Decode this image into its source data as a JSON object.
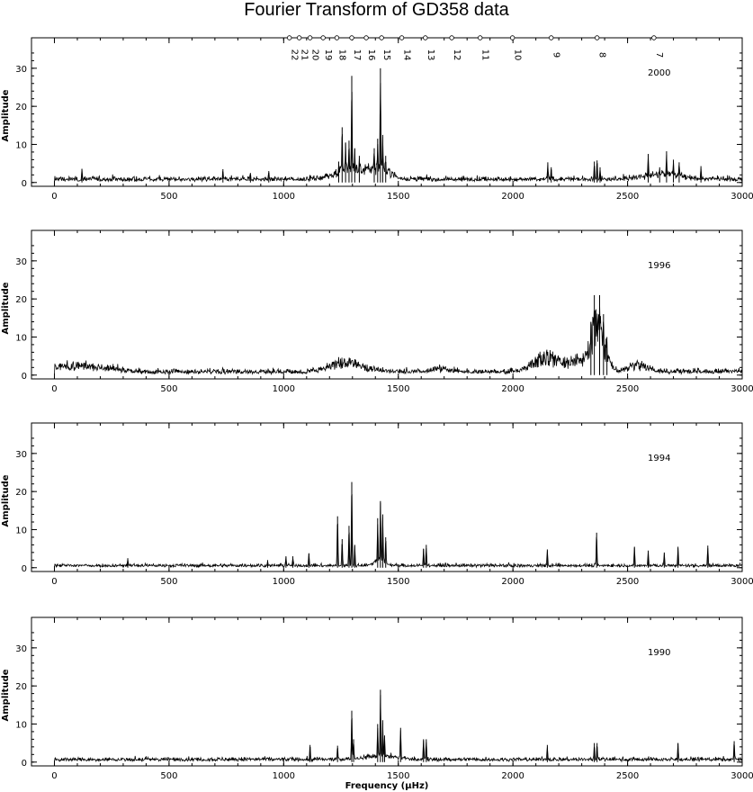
{
  "title": "Fourier Transform of GD358 data",
  "chart_data": {
    "type": "line",
    "xlabel": "Frequency (μHz)",
    "ylabel": "Amplitude",
    "xlim": [
      -100,
      3000
    ],
    "ylim": [
      -1,
      38
    ],
    "x_ticks": [
      0,
      500,
      1000,
      1500,
      2000,
      2500,
      3000
    ],
    "y_ticks": [
      0,
      10,
      20,
      30
    ],
    "mode_markers": [
      {
        "label": "22",
        "x": 1025
      },
      {
        "label": "21",
        "x": 1068
      },
      {
        "label": "20",
        "x": 1115
      },
      {
        "label": "19",
        "x": 1172
      },
      {
        "label": "18",
        "x": 1232
      },
      {
        "label": "17",
        "x": 1297
      },
      {
        "label": "16",
        "x": 1360
      },
      {
        "label": "15",
        "x": 1427
      },
      {
        "label": "14",
        "x": 1515
      },
      {
        "label": "13",
        "x": 1618
      },
      {
        "label": "12",
        "x": 1733
      },
      {
        "label": "11",
        "x": 1857
      },
      {
        "label": "10",
        "x": 1998
      },
      {
        "label": "9",
        "x": 2167
      },
      {
        "label": "8",
        "x": 2367
      },
      {
        "label": "7",
        "x": 2615
      }
    ],
    "panels": [
      {
        "year": "2000",
        "baseline": 1.0,
        "noise": 0.9,
        "humps": [
          {
            "center": 1290,
            "width": 90,
            "height": 3.0
          },
          {
            "center": 1420,
            "width": 60,
            "height": 3.0
          },
          {
            "center": 2650,
            "width": 120,
            "height": 1.5
          }
        ],
        "peaks": [
          [
            120,
            3.6
          ],
          [
            735,
            3.5
          ],
          [
            855,
            2.5
          ],
          [
            935,
            3.0
          ],
          [
            1240,
            5.5
          ],
          [
            1255,
            14.5
          ],
          [
            1270,
            10.5
          ],
          [
            1285,
            11.0
          ],
          [
            1297,
            28.0
          ],
          [
            1310,
            9.0
          ],
          [
            1330,
            7.0
          ],
          [
            1395,
            9.0
          ],
          [
            1410,
            11.5
          ],
          [
            1422,
            30.0
          ],
          [
            1432,
            12.5
          ],
          [
            1445,
            7.0
          ],
          [
            2152,
            5.3
          ],
          [
            2167,
            4.0
          ],
          [
            2355,
            5.5
          ],
          [
            2367,
            5.8
          ],
          [
            2380,
            4.0
          ],
          [
            2590,
            7.5
          ],
          [
            2640,
            4.0
          ],
          [
            2670,
            8.2
          ],
          [
            2700,
            6.0
          ],
          [
            2725,
            5.3
          ],
          [
            2820,
            4.3
          ]
        ]
      },
      {
        "year": "1996",
        "baseline": 1.0,
        "noise": 1.0,
        "humps": [
          {
            "center": 80,
            "width": 90,
            "height": 2.0
          },
          {
            "center": 230,
            "width": 90,
            "height": 1.0
          },
          {
            "center": 1280,
            "width": 100,
            "height": 2.6
          },
          {
            "center": 1680,
            "width": 60,
            "height": 0.9
          },
          {
            "center": 2150,
            "width": 80,
            "height": 4.0
          },
          {
            "center": 2280,
            "width": 70,
            "height": 2.5
          },
          {
            "center": 2370,
            "width": 45,
            "height": 12.0
          },
          {
            "center": 2550,
            "width": 60,
            "height": 2.0
          }
        ],
        "peaks": [
          [
            2355,
            21.0
          ],
          [
            2378,
            21.0
          ],
          [
            2340,
            14.0
          ],
          [
            2395,
            16.0
          ],
          [
            2410,
            10.0
          ]
        ]
      },
      {
        "year": "1994",
        "baseline": 0.6,
        "noise": 0.7,
        "humps": [
          {
            "center": 1420,
            "width": 30,
            "height": 2.0
          }
        ],
        "peaks": [
          [
            320,
            2.5
          ],
          [
            930,
            2.0
          ],
          [
            1010,
            3.0
          ],
          [
            1040,
            3.0
          ],
          [
            1110,
            3.8
          ],
          [
            1235,
            13.5
          ],
          [
            1255,
            7.5
          ],
          [
            1285,
            11.0
          ],
          [
            1297,
            22.5
          ],
          [
            1310,
            6.0
          ],
          [
            1410,
            13.0
          ],
          [
            1422,
            17.5
          ],
          [
            1432,
            14.0
          ],
          [
            1445,
            8.0
          ],
          [
            1610,
            5.0
          ],
          [
            1622,
            6.0
          ],
          [
            2150,
            4.8
          ],
          [
            2365,
            9.2
          ],
          [
            2530,
            5.5
          ],
          [
            2590,
            4.5
          ],
          [
            2660,
            4.0
          ],
          [
            2720,
            5.5
          ],
          [
            2850,
            5.8
          ]
        ]
      },
      {
        "year": "1990",
        "baseline": 0.8,
        "noise": 0.7,
        "humps": [
          {
            "center": 1420,
            "width": 100,
            "height": 1.0
          }
        ],
        "peaks": [
          [
            1115,
            4.5
          ],
          [
            1235,
            4.3
          ],
          [
            1297,
            13.5
          ],
          [
            1305,
            6.0
          ],
          [
            1410,
            10.0
          ],
          [
            1422,
            19.0
          ],
          [
            1432,
            11.0
          ],
          [
            1440,
            7.0
          ],
          [
            1510,
            9.0
          ],
          [
            1610,
            6.0
          ],
          [
            1622,
            6.0
          ],
          [
            2150,
            4.5
          ],
          [
            2355,
            5.0
          ],
          [
            2367,
            5.0
          ],
          [
            2720,
            5.0
          ],
          [
            2965,
            5.5
          ]
        ]
      }
    ]
  }
}
